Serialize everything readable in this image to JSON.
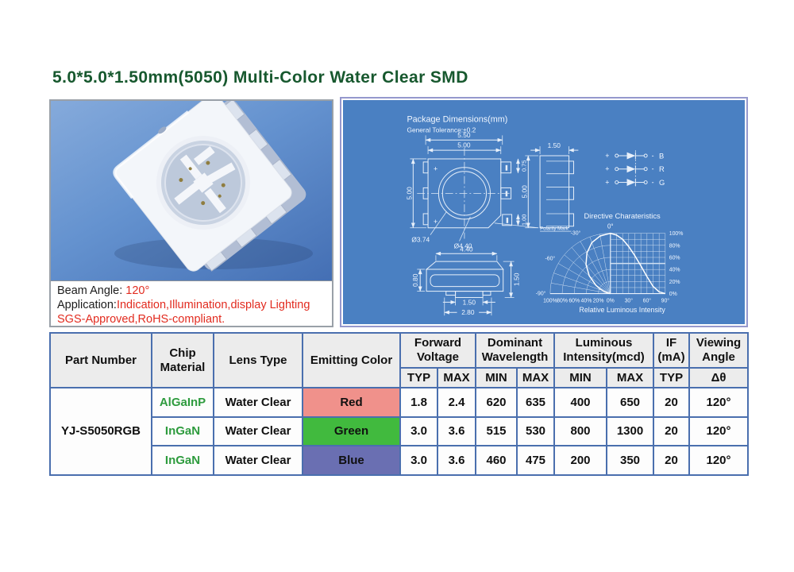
{
  "page": {
    "title": "5.0*5.0*1.50mm(5050) Multi-Color Water Clear SMD"
  },
  "left_panel": {
    "beam_angle_label": "Beam Angle: ",
    "beam_angle_value": "120°",
    "application_label": "Application:",
    "application_value": "Indication,Illumination,display Lighting",
    "compliance_line": "SGS-Approved,RoHS-compliant."
  },
  "diagram": {
    "title": "Package Dimensions(mm)",
    "tolerance": "General Tolerance:±0.2",
    "top_view": {
      "dim_outer_width": "5.50",
      "dim_inner_width": "5.00",
      "dim_height": "5.00",
      "dim_pad": "0.75",
      "dim_corner_pad": "1.00",
      "dim_lens_inner": "Ø3.74",
      "dim_lens_outer": "Ø4.40",
      "polarity_label": "Polarity Mark",
      "plus_mark": "+"
    },
    "side_view": {
      "dim_width": "1.50",
      "dim_height": "5.00"
    },
    "front_view": {
      "dim_top_width": "4.40",
      "dim_height": "1.50",
      "dim_base": "0.80",
      "dim_pad_width": "1.50",
      "dim_pad_span": "2.80"
    },
    "circuit": {
      "rows": [
        {
          "plus": "+",
          "minus": "-",
          "label": "B"
        },
        {
          "plus": "+",
          "minus": "-",
          "label": "R"
        },
        {
          "plus": "+",
          "minus": "-",
          "label": "G"
        }
      ]
    }
  },
  "chart_data": {
    "type": "line",
    "title": "Directive Charateristics",
    "xlabel": "Relative Luminous Intensity",
    "zero_label": "0°",
    "right_axis_labels": [
      "100%",
      "80%",
      "60%",
      "40%",
      "20%",
      "0%"
    ],
    "bottom_pct_labels": [
      "100%",
      "80%",
      "60%",
      "40%",
      "20%",
      "0%"
    ],
    "bottom_deg_labels": [
      "30°",
      "60°",
      "90°"
    ],
    "left_angle_labels": [
      "-30°",
      "-60°",
      "-90°"
    ],
    "ylim": [
      0,
      100
    ],
    "angle_range_deg": [
      -90,
      90
    ],
    "grid": true,
    "series": [
      {
        "name": "relative-luminous-intensity",
        "angles_deg": [
          0,
          10,
          20,
          30,
          40,
          50,
          60,
          65,
          70,
          80,
          90
        ],
        "values_pct": [
          100,
          97,
          90,
          78,
          63,
          46,
          28,
          20,
          12,
          3,
          0
        ]
      }
    ]
  },
  "table": {
    "headers": {
      "part_number": "Part Number",
      "chip_material": "Chip Material",
      "lens_type": "Lens Type",
      "emitting_color": "Emitting Color",
      "forward_voltage": "Forward Voltage",
      "dominant_wavelength": "Dominant Wavelength",
      "luminous_intensity": "Luminous Intensity(mcd)",
      "if_ma": "IF (mA)",
      "viewing_angle": "Viewing Angle",
      "sub": {
        "typ": "TYP",
        "max": "MAX",
        "min": "MIN",
        "delta": "Δθ"
      }
    },
    "part_number": "YJ-S5050RGB",
    "rows": [
      {
        "chip_material": "AlGaInP",
        "lens_type": "Water Clear",
        "emitting_color": "Red",
        "color_bg": "#f0918b",
        "vf_typ": "1.8",
        "vf_max": "2.4",
        "wl_min": "620",
        "wl_max": "635",
        "iv_min": "400",
        "iv_max": "650",
        "if_typ": "20",
        "viewing_angle": "120°"
      },
      {
        "chip_material": "InGaN",
        "lens_type": "Water Clear",
        "emitting_color": "Green",
        "color_bg": "#41ba3e",
        "vf_typ": "3.0",
        "vf_max": "3.6",
        "wl_min": "515",
        "wl_max": "530",
        "iv_min": "800",
        "iv_max": "1300",
        "if_typ": "20",
        "viewing_angle": "120°"
      },
      {
        "chip_material": "InGaN",
        "lens_type": "Water Clear",
        "emitting_color": "Blue",
        "color_bg": "#6a6fb2",
        "vf_typ": "3.0",
        "vf_max": "3.6",
        "wl_min": "460",
        "wl_max": "475",
        "iv_min": "200",
        "iv_max": "350",
        "if_typ": "20",
        "viewing_angle": "120°"
      }
    ]
  },
  "colors": {
    "panel_blue": "#4a80c2",
    "title_green": "#17582e",
    "table_border_blue": "#4a6fae",
    "caption_red": "#e22b1f",
    "chip_green": "#2e9b3e"
  }
}
